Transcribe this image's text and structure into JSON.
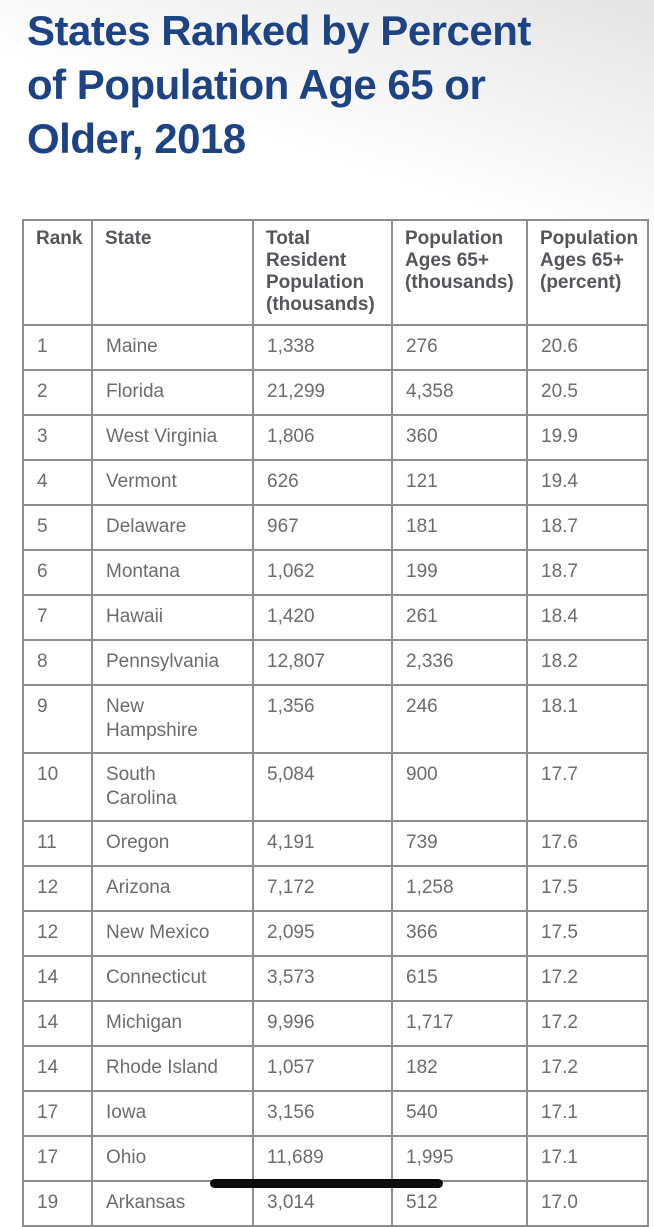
{
  "page": {
    "title_lines": [
      "States Ranked by Percent",
      "of Population Age 65 or",
      "Older, 2018"
    ]
  },
  "colors": {
    "title": "#1e4385",
    "header_text": "#54565a",
    "body_text": "#6c6c6e",
    "table_border": "#8e8e90",
    "indicator_bar": "#0b0b0b"
  },
  "table": {
    "columns": [
      "Rank",
      "State",
      "Total Resident Population (thousands)",
      "Population Ages 65+ (thousands)",
      "Population Ages 65+ (percent)"
    ],
    "column_keys": [
      "rank",
      "state",
      "total_population",
      "pop_65_plus",
      "pct_65_plus"
    ],
    "rows": [
      {
        "rank": "1",
        "state": "Maine",
        "total_population": "1,338",
        "pop_65_plus": "276",
        "pct_65_plus": "20.6"
      },
      {
        "rank": "2",
        "state": "Florida",
        "total_population": "21,299",
        "pop_65_plus": "4,358",
        "pct_65_plus": "20.5"
      },
      {
        "rank": "3",
        "state": "West Virginia",
        "total_population": "1,806",
        "pop_65_plus": "360",
        "pct_65_plus": "19.9"
      },
      {
        "rank": "4",
        "state": "Vermont",
        "total_population": "626",
        "pop_65_plus": "121",
        "pct_65_plus": "19.4"
      },
      {
        "rank": "5",
        "state": "Delaware",
        "total_population": "967",
        "pop_65_plus": "181",
        "pct_65_plus": "18.7"
      },
      {
        "rank": "6",
        "state": "Montana",
        "total_population": "1,062",
        "pop_65_plus": "199",
        "pct_65_plus": "18.7"
      },
      {
        "rank": "7",
        "state": "Hawaii",
        "total_population": "1,420",
        "pop_65_plus": "261",
        "pct_65_plus": "18.4"
      },
      {
        "rank": "8",
        "state": "Pennsylvania",
        "total_population": "12,807",
        "pop_65_plus": "2,336",
        "pct_65_plus": "18.2"
      },
      {
        "rank": "9",
        "state": "New\nHampshire",
        "total_population": "1,356",
        "pop_65_plus": "246",
        "pct_65_plus": "18.1"
      },
      {
        "rank": "10",
        "state": "South\nCarolina",
        "total_population": "5,084",
        "pop_65_plus": "900",
        "pct_65_plus": "17.7"
      },
      {
        "rank": "11",
        "state": "Oregon",
        "total_population": "4,191",
        "pop_65_plus": "739",
        "pct_65_plus": "17.6"
      },
      {
        "rank": "12",
        "state": "Arizona",
        "total_population": "7,172",
        "pop_65_plus": "1,258",
        "pct_65_plus": "17.5"
      },
      {
        "rank": "12",
        "state": "New Mexico",
        "total_population": "2,095",
        "pop_65_plus": "366",
        "pct_65_plus": "17.5"
      },
      {
        "rank": "14",
        "state": "Connecticut",
        "total_population": "3,573",
        "pop_65_plus": "615",
        "pct_65_plus": "17.2"
      },
      {
        "rank": "14",
        "state": "Michigan",
        "total_population": "9,996",
        "pop_65_plus": "1,717",
        "pct_65_plus": "17.2"
      },
      {
        "rank": "14",
        "state": "Rhode Island",
        "total_population": "1,057",
        "pop_65_plus": "182",
        "pct_65_plus": "17.2"
      },
      {
        "rank": "17",
        "state": "Iowa",
        "total_population": "3,156",
        "pop_65_plus": "540",
        "pct_65_plus": "17.1"
      },
      {
        "rank": "17",
        "state": "Ohio",
        "total_population": "11,689",
        "pop_65_plus": "1,995",
        "pct_65_plus": "17.1"
      },
      {
        "rank": "19",
        "state": "Arkansas",
        "total_population": "3,014",
        "pop_65_plus": "512",
        "pct_65_plus": "17.0"
      }
    ]
  }
}
